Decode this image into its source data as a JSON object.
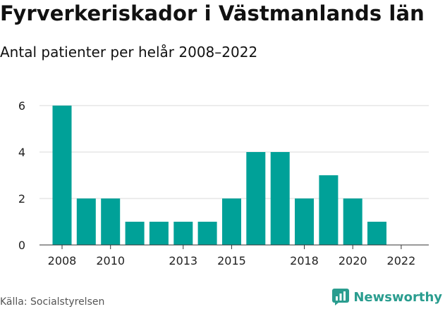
{
  "title": "Fyrverkeriskador i Västmanlands län",
  "subtitle": "Antal patienter per helår 2008–2022",
  "source": "Källa: Socialstyrelsen",
  "brand": "Newsworthy",
  "colors": {
    "bar": "#00a198",
    "grid": "#d9d9d9",
    "axis": "#333333",
    "brand": "#2a9d8f"
  },
  "icons": {
    "brand_logo": "bar-chart-logo-icon"
  },
  "chart_data": {
    "type": "bar",
    "title": "Fyrverkeriskador i Västmanlands län",
    "subtitle": "Antal patienter per helår 2008–2022",
    "categories": [
      "2008",
      "2009",
      "2010",
      "2011",
      "2012",
      "2013",
      "2014",
      "2015",
      "2016",
      "2017",
      "2018",
      "2019",
      "2020",
      "2021",
      "2022"
    ],
    "values": [
      6,
      2,
      2,
      1,
      1,
      1,
      1,
      2,
      4,
      4,
      2,
      3,
      2,
      1,
      0
    ],
    "x_tick_labels": [
      "2008",
      "2010",
      "2013",
      "2015",
      "2018",
      "2020",
      "2022"
    ],
    "y_ticks": [
      "0",
      "2",
      "4",
      "6"
    ],
    "ylim": [
      0,
      6.5
    ],
    "grid": true,
    "legend": "none",
    "xlabel": "",
    "ylabel": ""
  }
}
